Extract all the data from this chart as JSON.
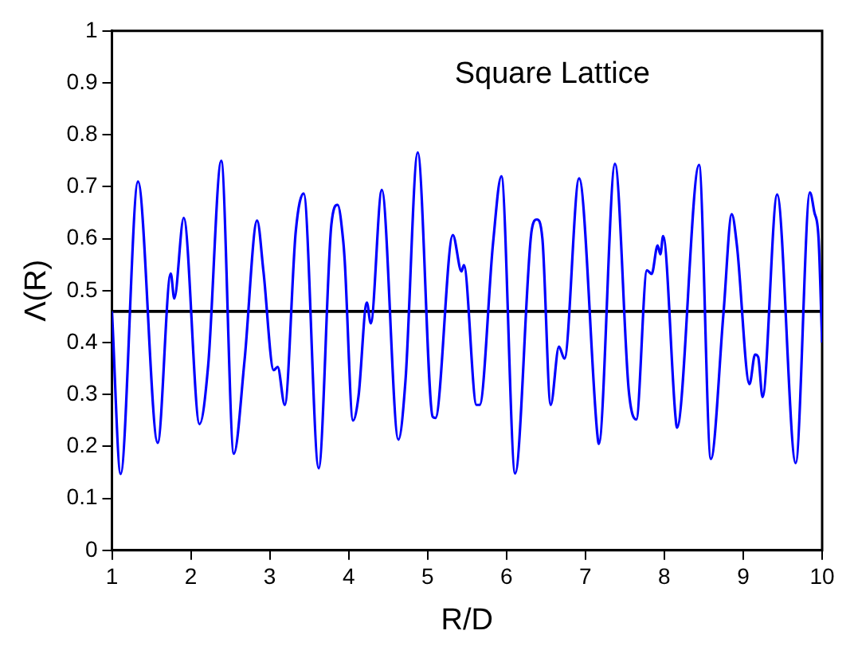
{
  "chart_data": {
    "type": "line",
    "title": "Square Lattice",
    "xlabel": "R/D",
    "ylabel": "Λ(R)",
    "xlim": [
      1,
      10
    ],
    "xticks": [
      1,
      2,
      3,
      4,
      5,
      6,
      7,
      8,
      9,
      10
    ],
    "ylim": [
      0,
      1
    ],
    "yticks": [
      0,
      0.1,
      0.2,
      0.3,
      0.4,
      0.5,
      0.6,
      0.7,
      0.8,
      0.9,
      1
    ],
    "grid": false,
    "legend": false,
    "marker": "none",
    "line_style": "solid",
    "ref_lines": [
      {
        "axis": "y",
        "value": 0.46,
        "color": "#000000"
      }
    ],
    "series": [
      {
        "color": "#0000ff",
        "x": [
          1,
          1.11,
          1.33,
          1.58,
          1.745,
          1.79,
          1.91,
          2.11,
          2.22,
          2.385,
          2.545,
          2.68,
          2.84,
          2.92,
          3.05,
          3.1,
          3.19,
          3.33,
          3.43,
          3.62,
          3.78,
          3.86,
          3.93,
          3.95,
          4.055,
          4.125,
          4.23,
          4.28,
          4.42,
          4.63,
          4.72,
          4.875,
          5.065,
          5.1,
          5.32,
          5.43,
          5.46,
          5.62,
          5.66,
          5.83,
          5.935,
          6.11,
          6.32,
          6.385,
          6.455,
          6.56,
          6.665,
          6.735,
          6.92,
          7.15,
          7.17,
          7.375,
          7.55,
          7.645,
          7.78,
          7.84,
          7.915,
          7.95,
          7.985,
          8.14,
          8.16,
          8.44,
          8.59,
          8.75,
          8.855,
          8.92,
          9.08,
          9.15,
          9.19,
          9.245,
          9.43,
          9.665,
          9.845,
          9.9,
          9.955,
          10
        ],
        "values": [
          0.46,
          0.147,
          0.71,
          0.207,
          0.533,
          0.485,
          0.64,
          0.243,
          0.357,
          0.75,
          0.186,
          0.365,
          0.635,
          0.537,
          0.347,
          0.353,
          0.28,
          0.615,
          0.687,
          0.158,
          0.626,
          0.665,
          0.597,
          0.557,
          0.25,
          0.297,
          0.477,
          0.437,
          0.694,
          0.213,
          0.327,
          0.766,
          0.257,
          0.255,
          0.607,
          0.537,
          0.549,
          0.28,
          0.28,
          0.592,
          0.72,
          0.148,
          0.617,
          0.637,
          0.6,
          0.28,
          0.392,
          0.369,
          0.716,
          0.225,
          0.205,
          0.744,
          0.307,
          0.252,
          0.539,
          0.532,
          0.587,
          0.57,
          0.605,
          0.26,
          0.236,
          0.742,
          0.176,
          0.457,
          0.647,
          0.587,
          0.32,
          0.377,
          0.372,
          0.295,
          0.685,
          0.168,
          0.689,
          0.652,
          0.6,
          0.4
        ]
      }
    ]
  }
}
